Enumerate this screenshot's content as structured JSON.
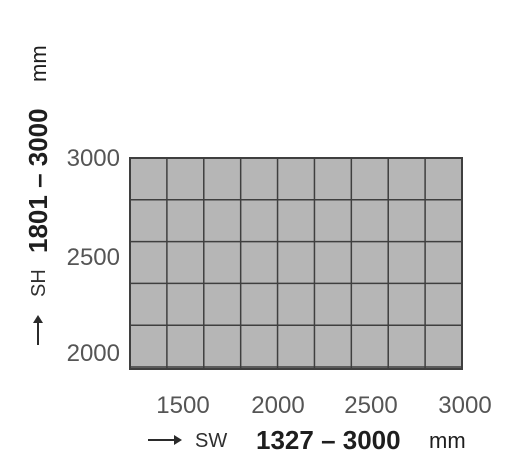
{
  "diagram": {
    "y_axis": {
      "abbrev": "SH",
      "range": "1801 – 3000",
      "unit": "mm",
      "ticks": [
        "3000",
        "2500",
        "2000"
      ],
      "min": 1801,
      "max": 3000
    },
    "x_axis": {
      "abbrev": "SW",
      "range": "1327 – 3000",
      "unit": "mm",
      "ticks": [
        "1500",
        "2000",
        "2500",
        "3000"
      ],
      "min": 1327,
      "max": 3000
    },
    "grid_columns": 9,
    "grid_rows": 5,
    "colors": {
      "fill": "#b6b6b6",
      "grid": "#3f3f3f",
      "text": "#555555",
      "arrow": "#2b2b2b"
    }
  }
}
